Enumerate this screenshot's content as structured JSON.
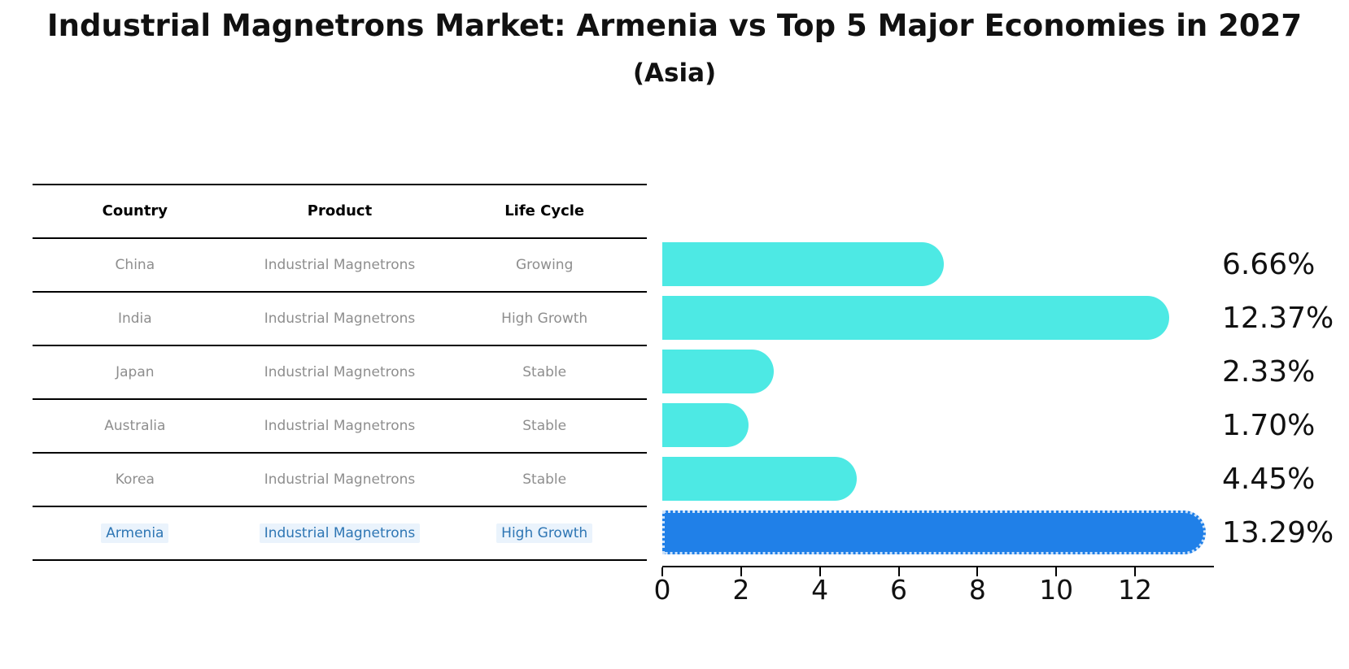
{
  "header": {
    "title": "Industrial Magnetrons Market: Armenia vs Top 5 Major Economies in 2027",
    "subtitle": "(Asia)"
  },
  "table": {
    "columns": [
      "Country",
      "Product",
      "Life Cycle"
    ]
  },
  "chart_data": {
    "type": "bar",
    "orientation": "horizontal",
    "title": "Industrial Magnetrons Market: Armenia vs Top 5 Major Economies in 2027",
    "subtitle": "(Asia)",
    "categories": [
      "China",
      "India",
      "Japan",
      "Australia",
      "Korea",
      "Armenia"
    ],
    "values": [
      6.66,
      12.37,
      2.33,
      1.7,
      4.45,
      13.29
    ],
    "rows": [
      {
        "country": "China",
        "product": "Industrial Magnetrons",
        "life_cycle": "Growing",
        "value": 6.66,
        "value_label": "6.66%",
        "highlight": false
      },
      {
        "country": "India",
        "product": "Industrial Magnetrons",
        "life_cycle": "High Growth",
        "value": 12.37,
        "value_label": "12.37%",
        "highlight": false
      },
      {
        "country": "Japan",
        "product": "Industrial Magnetrons",
        "life_cycle": "Stable",
        "value": 2.33,
        "value_label": "2.33%",
        "highlight": false
      },
      {
        "country": "Australia",
        "product": "Industrial Magnetrons",
        "life_cycle": "Stable",
        "value": 1.7,
        "value_label": "1.70%",
        "highlight": false
      },
      {
        "country": "Korea",
        "product": "Industrial Magnetrons",
        "life_cycle": "Stable",
        "value": 4.45,
        "value_label": "4.45%",
        "highlight": false
      },
      {
        "country": "Armenia",
        "product": "Industrial Magnetrons",
        "life_cycle": "High Growth",
        "value": 13.29,
        "value_label": "13.29%",
        "highlight": true
      }
    ],
    "x_ticks": [
      0,
      2,
      4,
      6,
      8,
      10,
      12
    ],
    "xlim": [
      0,
      13.96
    ],
    "grid": false,
    "legend": null,
    "bar_color": "#4DE9E4",
    "highlight_bar_color": "#2080E8",
    "highlight_bar_edge_color": "#cde2f9",
    "highlight_text_color": "#2E76B4",
    "table_text_color": "#8e8e8e",
    "axis_color": "#000000"
  }
}
